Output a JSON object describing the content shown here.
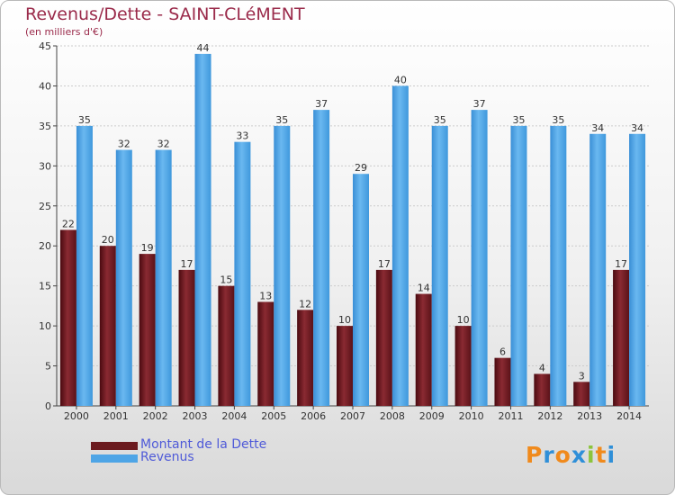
{
  "chart_data": {
    "type": "bar",
    "title": "Revenus/Dette - SAINT-CLéMENT",
    "subtitle": "(en milliers d'€)",
    "categories": [
      "2000",
      "2001",
      "2002",
      "2003",
      "2004",
      "2005",
      "2006",
      "2007",
      "2008",
      "2009",
      "2010",
      "2011",
      "2012",
      "2013",
      "2014"
    ],
    "series": [
      {
        "name": "Montant de la Dette",
        "color": "#6b1a1e",
        "values": [
          22,
          20,
          19,
          17,
          15,
          13,
          12,
          10,
          17,
          14,
          10,
          6,
          4,
          3,
          17
        ]
      },
      {
        "name": "Revenus",
        "color": "#4ea5e6",
        "values": [
          35,
          32,
          32,
          44,
          33,
          35,
          37,
          29,
          40,
          35,
          37,
          35,
          35,
          34,
          34
        ]
      }
    ],
    "ylim": [
      0,
      45
    ],
    "yticks": [
      0,
      5,
      10,
      15,
      20,
      25,
      30,
      35,
      40,
      45
    ],
    "grid": true,
    "legend": "bottom-left",
    "xlabel": "",
    "ylabel": ""
  },
  "logo": {
    "letters": [
      "P",
      "r",
      "o",
      "x",
      "i",
      "t",
      "i"
    ],
    "colors": [
      "#f08a1c",
      "#2f8fd8",
      "#f08a1c",
      "#2f8fd8",
      "#8cc43c",
      "#f08a1c",
      "#2f8fd8"
    ]
  }
}
